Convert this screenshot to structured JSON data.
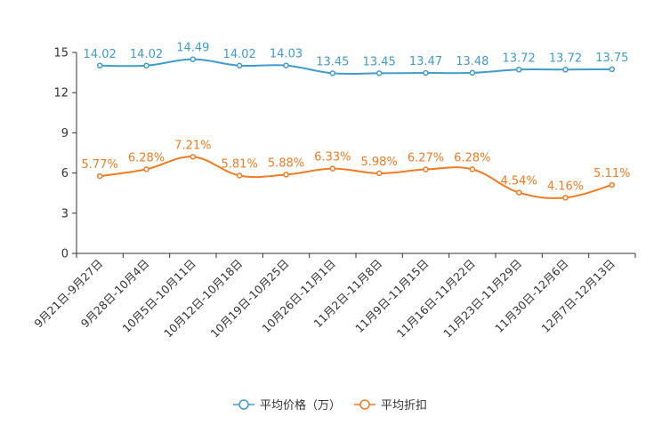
{
  "chart_data": {
    "type": "line",
    "categories": [
      "9月21日-9月27日",
      "9月28日-10月4日",
      "10月5日-10月11日",
      "10月12日-10月18日",
      "10月19日-10月25日",
      "10月26日-11月1日",
      "11月2日-11月8日",
      "11月9日-11月15日",
      "11月16日-11月22日",
      "11月23日-11月29日",
      "11月30日-12月6日",
      "12月7日-12月13日"
    ],
    "series": [
      {
        "name": "平均价格（万）",
        "color": "#3f9ccb",
        "values": [
          14.02,
          14.02,
          14.49,
          14.02,
          14.03,
          13.45,
          13.45,
          13.47,
          13.48,
          13.72,
          13.72,
          13.75
        ],
        "labels": [
          "14.02",
          "14.02",
          "14.49",
          "14.02",
          "14.03",
          "13.45",
          "13.45",
          "13.47",
          "13.48",
          "13.72",
          "13.72",
          "13.75"
        ]
      },
      {
        "name": "平均折扣",
        "color": "#f07b22",
        "values": [
          5.77,
          6.28,
          7.21,
          5.81,
          5.88,
          6.33,
          5.98,
          6.27,
          6.28,
          4.54,
          4.16,
          5.11
        ],
        "labels": [
          "5.77%",
          "6.28%",
          "7.21%",
          "5.81%",
          "5.88%",
          "6.33%",
          "5.98%",
          "6.27%",
          "6.28%",
          "4.54%",
          "4.16%",
          "5.11%"
        ]
      }
    ],
    "ylim": [
      0,
      15
    ],
    "yticks": [
      0,
      3,
      6,
      9,
      12,
      15
    ],
    "ytick_labels": [
      "0",
      "3",
      "6",
      "9",
      "12",
      "15"
    ],
    "legend_position": "bottom-center",
    "grid": false
  }
}
